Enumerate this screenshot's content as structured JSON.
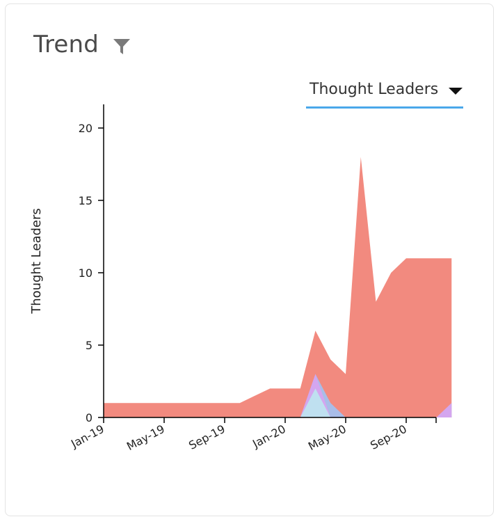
{
  "card": {
    "title": "Trend"
  },
  "icons": {
    "filter": "filter-icon",
    "dropdown": "caret-down-icon"
  },
  "dropdown": {
    "selected": "Thought Leaders"
  },
  "colors": {
    "series_red": "#f28a7f",
    "series_blue": "#a9bde8",
    "series_purple": "#d4a6ef",
    "series_lightblue": "#bfe0f0",
    "accent": "#4aa8ea"
  },
  "chart_data": {
    "type": "area",
    "stacked": true,
    "ylabel": "Thought Leaders",
    "xlabel": "",
    "ylim": [
      0,
      22
    ],
    "yticks": [
      0,
      5,
      10,
      15,
      20
    ],
    "x": [
      "2019-01",
      "2019-02",
      "2019-03",
      "2019-04",
      "2019-05",
      "2019-06",
      "2019-07",
      "2019-08",
      "2019-09",
      "2019-10",
      "2019-11",
      "2019-12",
      "2020-01",
      "2020-02",
      "2020-03",
      "2020-04",
      "2020-05",
      "2020-06",
      "2020-07",
      "2020-08",
      "2020-09",
      "2020-10",
      "2020-11",
      "2020-12"
    ],
    "xtick_labels": [
      "Jan-19",
      "May-19",
      "Sep-19",
      "Jan-20",
      "May-20",
      "Sep-20"
    ],
    "xtick_positions": [
      "2019-01",
      "2019-05",
      "2019-09",
      "2020-01",
      "2020-05",
      "2020-09"
    ],
    "series": [
      {
        "color": "#bfe0f0",
        "values": [
          0,
          0,
          0,
          0,
          0,
          0,
          0,
          0,
          0,
          0,
          0,
          0,
          0,
          0,
          2,
          0,
          0,
          0,
          0,
          0,
          0,
          0,
          0,
          0
        ]
      },
      {
        "color": "#d4a6ef",
        "values": [
          0,
          0,
          0,
          0,
          0,
          0,
          0,
          0,
          0,
          0,
          0,
          0,
          0,
          0,
          1,
          0,
          0,
          0,
          0,
          0,
          0,
          0,
          0,
          1
        ]
      },
      {
        "color": "#a9bde8",
        "values": [
          0,
          0,
          0,
          0,
          0,
          0,
          0,
          0,
          0,
          0,
          0,
          0,
          0,
          0,
          0,
          1,
          0,
          0,
          0,
          0,
          0,
          0,
          0,
          0
        ]
      },
      {
        "color": "#f28a7f",
        "values": [
          1,
          1,
          1,
          1,
          1,
          1,
          1,
          1,
          1,
          1,
          1.5,
          2,
          2,
          2,
          3,
          3,
          3,
          18,
          8,
          10,
          11,
          11,
          11,
          10
        ]
      }
    ]
  }
}
